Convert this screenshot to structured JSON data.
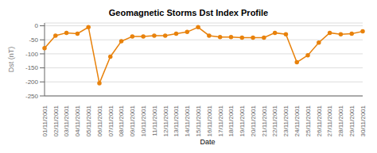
{
  "chart_data": {
    "type": "line",
    "title": "Geomagnetic Storms Dst Index Profile",
    "xlabel": "Date",
    "ylabel": "Dst (nT)",
    "categories": [
      "01/11/2001",
      "02/11/2001",
      "03/11/2001",
      "04/11/2001",
      "05/11/2001",
      "06/11/2001",
      "07/11/2001",
      "08/11/2001",
      "09/11/2001",
      "10/11/2001",
      "11/11/2001",
      "12/11/2001",
      "13/11/2001",
      "14/11/2001",
      "15/11/2001",
      "16/11/2001",
      "17/11/2001",
      "18/11/2001",
      "19/11/2001",
      "20/11/2001",
      "21/11/2001",
      "22/11/2001",
      "23/11/2001",
      "24/11/2001",
      "25/11/2001",
      "26/11/2001",
      "27/11/2001",
      "28/11/2001",
      "29/11/2001",
      "30/11/2001"
    ],
    "values": [
      -80,
      -35,
      -25,
      -28,
      -5,
      -205,
      -110,
      -55,
      -38,
      -38,
      -35,
      -35,
      -28,
      -22,
      -5,
      -35,
      -40,
      -40,
      -42,
      -42,
      -42,
      -25,
      -30,
      -130,
      -105,
      -60,
      -25,
      -30,
      -28,
      -20
    ],
    "color": "#E8820C",
    "marker": "circle",
    "ylim": [
      -250,
      10
    ],
    "yticks": [
      0,
      -50,
      -100,
      -150,
      -200,
      -250
    ],
    "grid": true
  }
}
